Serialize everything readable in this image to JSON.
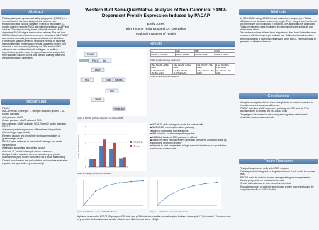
{
  "header": {
    "title": "Western Blot Semi-Quantitative Analysis of Non-Canonical cAMP-Dependent Protein Expression Induced by PACAP",
    "author": "Emily Jones",
    "advisors": "with Yvonne Holighaus and Dr. Lee Eiden",
    "institution": "National Institutes of Health"
  },
  "abstract": {
    "heading": "Abstract",
    "text": "Pituitary adenylate cyclase activating polypeptide (PACAP) is a neuroendocrine hormone that protects neurons from excitotoxicity and hypoxic damage. It binds to its cognate G-protein-coupled receptor PAC1, elevating intracellular cAMP and calcium. The present study aimed to identify a novel cAMP-dependent PACAP signal transduction pathway. The cell line NG108-15 and rat cortical neurons were stimulated with PACAP and various secondary messenger activators and inhibitors. Furthermore, a study aimed to develop a method to calibrate immunodetection protein assay results to quantify protein fold increase. A non-canonical pathway via ERK and not PKA activation was confirmed in both cell types. In addition, a hyperbolic regression curve to approximate values of protein from standard dilution curves was used to quantify observed Western Blot band intensities."
  },
  "background": {
    "heading": "Background",
    "items": [
      "PACAP",
      "•PACAP binds to receptor → receptor activates protein → G-protein activates",
      "•AC produces cAMP",
      "Known pathway: cAMP activated PKA",
      "New pathway: cAMP activates NCS-Rapgef2, which activates ERK1/2",
      "•Gene and protein expression: differentiated into proteins",
      "•Stress trigger hypertoxicity",
      "Elevated calcium and phosphate levels are mediators of glutamatergic death",
      "PACAP forms defenses to prevent cell damage and death",
      "Western Blot",
      "•Method of separating all proteins by size",
      "•Intensity of “bands” of sample can be measured",
      "Analyzed with a standard curve or housekeeping protein",
      "•Band intensity vs. Protein Amount is not a linear relationship",
      "Correct for saturation and gel variation and calculate estimation equation via hyperbolic regression script"
    ]
  },
  "methods": {
    "heading": "Methods",
    "paragraphs": [
      "An SDS-PAGE using NG108-15 and cortical cell samples (see Tables 1&2) was run to separate proteins by length. Then, the gel was transferred to a membrane and incubated in phospho-ERK and total ERK antibodies. Finally, membranes were incubated in chemiluminescent substrate and photos were taken.",
      "The background was deleted from the pictures, then band intensities were measured with the ImageJ gel analysis tool. Calibration band intensities were inputted into a hyperbolic regression script from A. Herrmann's lab to generate a calibration formula."
    ]
  },
  "results": {
    "heading": "Results",
    "diagram": {
      "labels": [
        "PACAP",
        "PAC1",
        "AC",
        "cAMP",
        "PKA",
        "Epac",
        "Rapgef2",
        "ERK",
        "CREB",
        "Proliferation"
      ],
      "caption": "Figure 1. PACAP pathway adapted from Eiden, 2008"
    },
    "table1": {
      "rows": [
        [
          "---",
          "sstat",
          "H89",
          "U0126"
        ],
        [
          "PACAP or forskolin",
          "PACAP + sstat",
          "PACAP + H89",
          "PACAP + U0126"
        ]
      ],
      "caption": "Table 1. pharmacology treatments"
    },
    "table2": {
      "rows": [
        [
          "25µL PACAP + 25µL buffer",
          "10µL PACAP + 10µL buffer",
          "5µL PACAP + 5µL buffer",
          "2.5µL PACAP + 2.5µL buffer"
        ],
        [
          "6.25µL PACAP + 18.75µL buffer",
          "3.125µL PACAP + 21.875µL buffer",
          "1.5µL PACAP + 5µL buffer",
          "1µL PACAP + 1µL buffer"
        ]
      ],
      "caption": "Table 2. calibration test samples"
    },
    "bullets": [
      "■NG108-15 cells are a good model for cortical cells",
      "■WAS U0126 not complete block pathway",
      "➤Need to investigate concentrations",
      "■H89 no block, so alternate pathway exists",
      "■U0126 full block, so ERK pathway is utilized",
      "■Total ERK band intensities were generally consistent, but didn't divide by background detection properly",
      "■High not to-bind sample lead to high standard deviations, so quantitative conclusions not accurate"
    ],
    "figure2": {
      "caption": "Figure 2. Average protein fold increase",
      "ylabel": "Average Protein Fold Increase",
      "ylim": [
        0,
        5
      ],
      "yticks": [
        0,
        1,
        2,
        3,
        4,
        5
      ],
      "series": [
        {
          "name": "NG108-15",
          "color": "#4a7ebb",
          "values": [
            1,
            2.6,
            2.2,
            1.1
          ]
        },
        {
          "name": "Cortical",
          "color": "#be4b48",
          "values": [
            1,
            3.4,
            3.0,
            1.2
          ]
        }
      ]
    },
    "figure3": {
      "caption": "Figure 3. Calibration curve for NG108-15 cells",
      "x": [
        0,
        5,
        10,
        15,
        20,
        25
      ],
      "xlim": [
        0,
        25
      ],
      "ylim": [
        0,
        100
      ],
      "values": [
        0,
        55,
        78,
        88,
        93,
        96
      ],
      "color": "#4a7ebb"
    },
    "figure4": {
      "caption": "Figure 4. Calibration curve for cortical cells",
      "x": [
        0,
        5,
        10,
        15,
        20,
        25
      ],
      "xlim": [
        0,
        25
      ],
      "ylim": [
        0,
        100
      ],
      "values": [
        0,
        40,
        62,
        76,
        85,
        90
      ],
      "color": "#4a7ebb"
    },
    "footnote": "High sum of errors for NG108-15 phospho-ERK bots and pERK bots because the saturation point for band intensity is 12.5µL sample. This curve was very sensitive to fluctuations at smaller dilutions and flattened out above 12.5µL."
  },
  "conclusions": {
    "heading": "Conclusions",
    "items": [
      "•Analysis incomplete: did not have enough blots to correct curve due to chemiluminescent substrate difference.",
      "•PACAP activates cAMP-dependent pathway via ERK and not PKA activation seen in cortical and NG108-15 cells",
      "•Target gene discovered in microarray also regulates calcium and phosphate concentrations in cells"
    ]
  },
  "future_research": {
    "heading": "Future Research",
    "items": [
      "•Test pathway in other cells with PAC1 receptor",
      "•Pathway could be targeted in drug development if only exists in neuronal cells",
      "•PACAP could be used to prevent damage during neurodegenerative disease progression or post-ischemic insult",
      "•Create calibration curve with more than two blots",
      "•Evaluate accuracy of method using known protein concentrations or by comparing results to ELISA studies"
    ]
  }
}
